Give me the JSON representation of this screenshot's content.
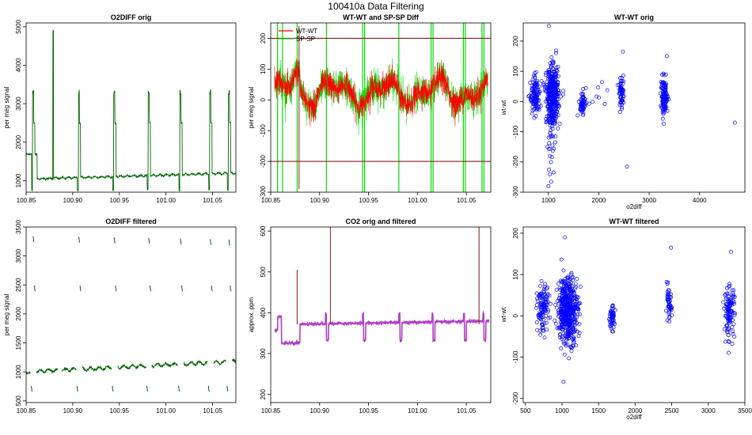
{
  "page_title": "100410a   Data Filtering",
  "colors": {
    "green_dark": "#006400",
    "red": "#ff0000",
    "green": "#00dd00",
    "blue": "#0000ff",
    "darkred": "#8b1a1a",
    "purple": "#b040c8"
  },
  "chart_data": [
    {
      "id": "o2diff-orig",
      "type": "line",
      "title": "O2DIFF orig",
      "xlabel": "",
      "ylabel": "per meg signal",
      "xlim": [
        100.85,
        101.075
      ],
      "ylim": [
        700,
        5100
      ],
      "xticks": [
        100.85,
        100.9,
        100.95,
        101.0,
        101.05
      ],
      "xtick_labels": [
        "100.85",
        "100.90",
        "100.95",
        "101.00",
        "101.05"
      ],
      "yticks": [
        1000,
        2000,
        3000,
        4000,
        5000
      ],
      "ytick_labels": [
        "1000",
        "2000",
        "3000",
        "4000",
        "5000"
      ],
      "series": [
        {
          "name": "O2DIFF",
          "color": "#006400"
        }
      ]
    },
    {
      "id": "wtwt-spsp-diff",
      "type": "line",
      "title": "WT-WT and SP-SP Diff",
      "xlabel": "",
      "ylabel": "per meg signal",
      "xlim": [
        100.85,
        101.075
      ],
      "ylim": [
        -300,
        250
      ],
      "xticks": [
        100.85,
        100.9,
        100.95,
        101.0,
        101.05
      ],
      "xtick_labels": [
        "100.85",
        "100.90",
        "100.95",
        "101.00",
        "101.05"
      ],
      "yticks": [
        -300,
        -200,
        -100,
        0,
        100,
        200
      ],
      "ytick_labels": [
        "-300",
        "-200",
        "-100",
        "0",
        "100",
        "200"
      ],
      "hlines": [
        200,
        -200
      ],
      "vlines": [
        100.857,
        100.862,
        100.877,
        100.907,
        100.944,
        100.946,
        100.981,
        101.014,
        101.016,
        101.047,
        101.049,
        101.066,
        101.068
      ],
      "legend": {
        "position": "top-left",
        "entries": [
          {
            "label": "WT-WT",
            "color": "#ff0000"
          },
          {
            "label": "SP-SP",
            "color": "#00dd00"
          }
        ]
      }
    },
    {
      "id": "wtwt-orig",
      "type": "scatter",
      "title": "WT-WT orig",
      "xlabel": "o2diff",
      "ylabel": "wt-wt",
      "xlim": [
        500,
        4900
      ],
      "ylim": [
        -300,
        260
      ],
      "xticks": [
        1000,
        2000,
        3000,
        4000
      ],
      "xtick_labels": [
        "1000",
        "2000",
        "3000",
        "4000"
      ],
      "yticks": [
        -300,
        -200,
        -100,
        0,
        100,
        200
      ],
      "ytick_labels": [
        "-300",
        "-200",
        "-100",
        "0",
        "100",
        "200"
      ],
      "outliers": [
        [
          1010,
          250
        ],
        [
          4700,
          -70
        ],
        [
          2560,
          -215
        ],
        [
          1000,
          -280
        ],
        [
          1150,
          160
        ],
        [
          2480,
          165
        ],
        [
          3350,
          150
        ]
      ]
    },
    {
      "id": "o2diff-filtered",
      "type": "scatter",
      "title": "O2DIFF filtered",
      "xlabel": "",
      "ylabel": "per meg signal",
      "xlim": [
        100.85,
        101.075
      ],
      "ylim": [
        470,
        3500
      ],
      "xticks": [
        100.85,
        100.9,
        100.95,
        101.0,
        101.05
      ],
      "xtick_labels": [
        "100.85",
        "100.90",
        "100.95",
        "101.00",
        "101.05"
      ],
      "yticks": [
        500,
        1000,
        1500,
        2000,
        2500,
        3000,
        3500
      ],
      "ytick_labels": [
        "500",
        "1000",
        "1500",
        "2000",
        "2500",
        "3000",
        "3500"
      ]
    },
    {
      "id": "co2-orig-filtered",
      "type": "line",
      "title": "CO2 orig and filtered",
      "xlabel": "",
      "ylabel": "approx. ppm",
      "xlim": [
        100.85,
        101.075
      ],
      "ylim": [
        180,
        610
      ],
      "xticks": [
        100.85,
        100.9,
        100.95,
        101.0,
        101.05
      ],
      "xtick_labels": [
        "100.85",
        "100.90",
        "100.95",
        "101.00",
        "101.05"
      ],
      "yticks": [
        200,
        300,
        400,
        500,
        600
      ],
      "ytick_labels": [
        "200",
        "300",
        "400",
        "500",
        "600"
      ],
      "series": [
        {
          "name": "orig",
          "color": "#8b1a1a"
        },
        {
          "name": "filtered",
          "color": "#b040c8"
        }
      ]
    },
    {
      "id": "wtwt-filtered",
      "type": "scatter",
      "title": "WT-WT filtered",
      "xlabel": "o2diff",
      "ylabel": "wt-wt",
      "xlim": [
        470,
        3500
      ],
      "ylim": [
        -210,
        215
      ],
      "xticks": [
        500,
        1000,
        1500,
        2000,
        2500,
        3000,
        3500
      ],
      "xtick_labels": [
        "500",
        "1000",
        "1500",
        "2000",
        "2500",
        "3000",
        "3500"
      ],
      "yticks": [
        -200,
        -100,
        0,
        100,
        200
      ],
      "ytick_labels": [
        "-200",
        "-100",
        "0",
        "100",
        "200"
      ],
      "outliers": [
        [
          1020,
          -160
        ],
        [
          2490,
          165
        ],
        [
          3310,
          155
        ],
        [
          1040,
          190
        ]
      ]
    }
  ]
}
